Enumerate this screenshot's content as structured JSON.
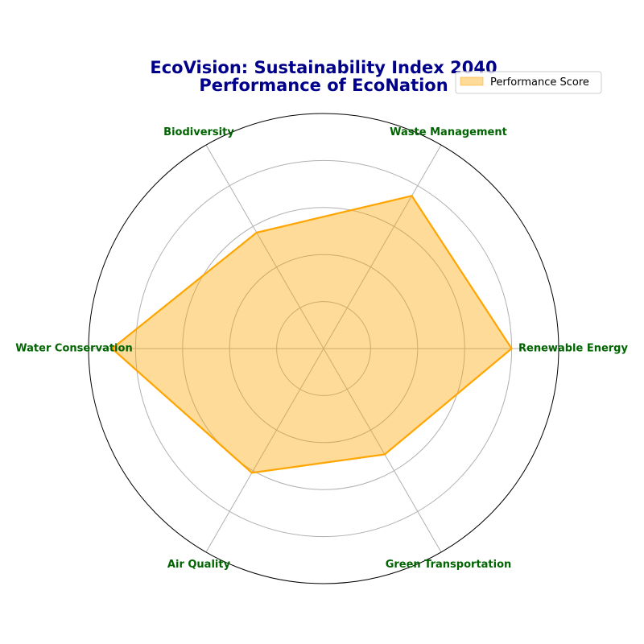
{
  "chart_data": {
    "type": "radar",
    "title_lines": [
      "EcoVision: Sustainability Index 2040",
      "Performance of EcoNation"
    ],
    "categories": [
      "Renewable Energy",
      "Waste Management",
      "Biodiversity",
      "Water Conservation",
      "Air Quality",
      "Green Transportation"
    ],
    "series": [
      {
        "name": "Performance Score",
        "values": [
          80,
          75,
          57,
          90,
          61,
          52
        ]
      }
    ],
    "rlim": [
      0,
      100
    ],
    "radial_grid": [
      20,
      40,
      60,
      80
    ],
    "radial_tick_labels_shown": false,
    "grid": true,
    "legend_position": "top-right",
    "colors": {
      "line": "#ffa500",
      "fill": "#ffa500",
      "title": "#00008b",
      "category_label": "#006400",
      "grid": "#b0b0b0",
      "outer_circle": "#000000"
    }
  }
}
